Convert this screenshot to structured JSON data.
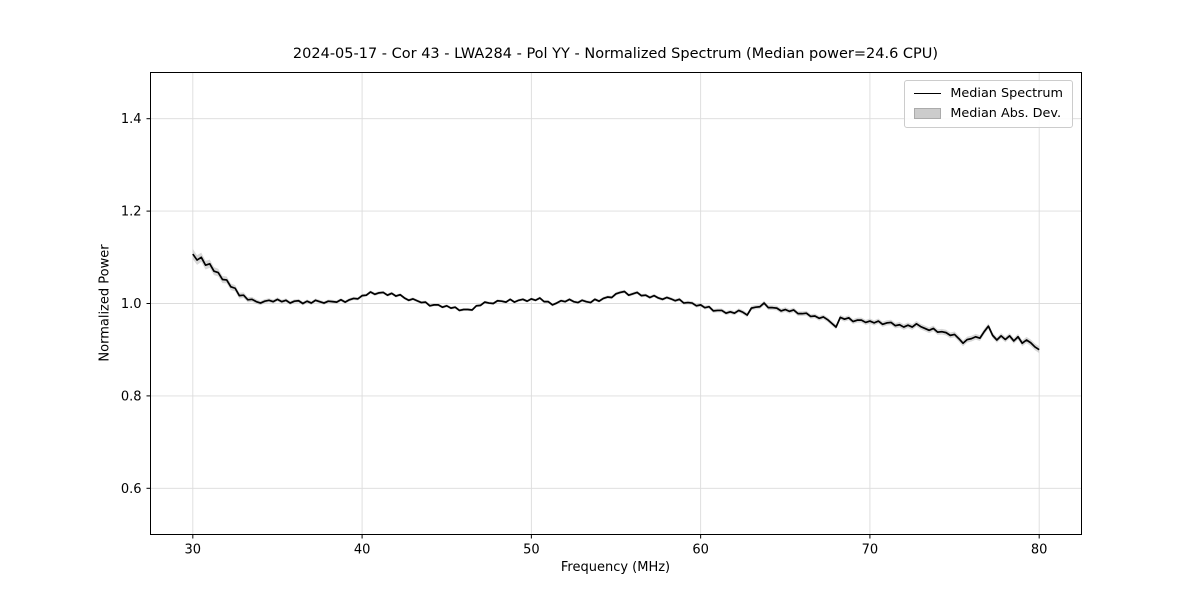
{
  "chart_data": {
    "type": "line",
    "title": "2024-05-17 - Cor 43 - LWA284 - Pol YY - Normalized Spectrum (Median power=24.6 CPU)",
    "xlabel": "Frequency (MHz)",
    "ylabel": "Normalized Power",
    "xlim": [
      27.5,
      82.5
    ],
    "ylim": [
      0.5,
      1.5
    ],
    "xticks": [
      {
        "value": 30,
        "label": "30"
      },
      {
        "value": 40,
        "label": "40"
      },
      {
        "value": 50,
        "label": "50"
      },
      {
        "value": 60,
        "label": "60"
      },
      {
        "value": 70,
        "label": "70"
      },
      {
        "value": 80,
        "label": "80"
      }
    ],
    "yticks": [
      {
        "value": 0.6,
        "label": "0.6"
      },
      {
        "value": 0.8,
        "label": "0.8"
      },
      {
        "value": 1.0,
        "label": "1.0"
      },
      {
        "value": 1.2,
        "label": "1.2"
      },
      {
        "value": 1.4,
        "label": "1.4"
      }
    ],
    "grid": true,
    "legend": {
      "position": "upper right",
      "entries": [
        {
          "label": "Median Spectrum",
          "type": "line",
          "color": "#000000"
        },
        {
          "label": "Median Abs. Dev.",
          "type": "patch",
          "color": "#cccccc"
        }
      ]
    },
    "colors": {
      "line": "#000000",
      "band": "#b8b8b8",
      "grid": "#dcdcdc",
      "spine": "#000000",
      "text": "#000000",
      "background": "#ffffff"
    },
    "series": [
      {
        "name": "Median Spectrum",
        "x_start": 30.0,
        "x_step": 0.25,
        "values": [
          1.107,
          1.094,
          1.1,
          1.083,
          1.086,
          1.07,
          1.067,
          1.052,
          1.051,
          1.036,
          1.033,
          1.017,
          1.018,
          1.008,
          1.009,
          1.004,
          1.001,
          1.005,
          1.007,
          1.004,
          1.009,
          1.004,
          1.007,
          1.001,
          1.005,
          1.006,
          1.0,
          1.005,
          1.001,
          1.007,
          1.004,
          1.001,
          1.005,
          1.004,
          1.003,
          1.008,
          1.003,
          1.008,
          1.011,
          1.01,
          1.017,
          1.018,
          1.025,
          1.02,
          1.023,
          1.024,
          1.018,
          1.022,
          1.016,
          1.019,
          1.012,
          1.007,
          1.01,
          1.006,
          1.002,
          1.003,
          0.995,
          0.997,
          0.997,
          0.992,
          0.995,
          0.99,
          0.992,
          0.985,
          0.987,
          0.987,
          0.986,
          0.995,
          0.996,
          1.003,
          1.001,
          1.0,
          1.006,
          1.005,
          1.003,
          1.009,
          1.003,
          1.007,
          1.009,
          1.005,
          1.01,
          1.007,
          1.012,
          1.004,
          1.004,
          0.997,
          1.001,
          1.006,
          1.004,
          1.009,
          1.004,
          1.002,
          1.007,
          1.004,
          1.002,
          1.009,
          1.005,
          1.011,
          1.014,
          1.013,
          1.021,
          1.024,
          1.026,
          1.018,
          1.021,
          1.024,
          1.017,
          1.018,
          1.013,
          1.017,
          1.012,
          1.009,
          1.013,
          1.01,
          1.006,
          1.009,
          1.001,
          1.002,
          1.001,
          0.995,
          0.997,
          0.991,
          0.993,
          0.984,
          0.985,
          0.985,
          0.979,
          0.982,
          0.979,
          0.985,
          0.981,
          0.975,
          0.99,
          0.992,
          0.993,
          1.001,
          0.991,
          0.991,
          0.99,
          0.984,
          0.987,
          0.983,
          0.986,
          0.978,
          0.978,
          0.979,
          0.972,
          0.973,
          0.968,
          0.971,
          0.965,
          0.957,
          0.949,
          0.97,
          0.966,
          0.969,
          0.961,
          0.964,
          0.964,
          0.959,
          0.962,
          0.958,
          0.962,
          0.955,
          0.958,
          0.959,
          0.952,
          0.954,
          0.949,
          0.953,
          0.949,
          0.956,
          0.95,
          0.946,
          0.942,
          0.946,
          0.938,
          0.939,
          0.937,
          0.931,
          0.933,
          0.924,
          0.914,
          0.922,
          0.924,
          0.928,
          0.925,
          0.939,
          0.951,
          0.931,
          0.921,
          0.93,
          0.922,
          0.93,
          0.919,
          0.928,
          0.914,
          0.921,
          0.915,
          0.906,
          0.9
        ]
      },
      {
        "name": "Median Abs. Dev.",
        "band_dev_points": [
          [
            30,
            0.011
          ],
          [
            31,
            0.009
          ],
          [
            32,
            0.0075
          ],
          [
            33,
            0.006
          ],
          [
            34,
            0.0045
          ],
          [
            36,
            0.004
          ],
          [
            40,
            0.0035
          ],
          [
            45,
            0.003
          ],
          [
            50,
            0.003
          ],
          [
            55,
            0.0035
          ],
          [
            58,
            0.0035
          ],
          [
            60,
            0.004
          ],
          [
            62,
            0.0045
          ],
          [
            64,
            0.005
          ],
          [
            66,
            0.005
          ],
          [
            68,
            0.005
          ],
          [
            70,
            0.0055
          ],
          [
            72,
            0.006
          ],
          [
            74,
            0.006
          ],
          [
            75.5,
            0.0065
          ],
          [
            77,
            0.006
          ],
          [
            78.5,
            0.006
          ],
          [
            80,
            0.0075
          ]
        ]
      }
    ]
  }
}
